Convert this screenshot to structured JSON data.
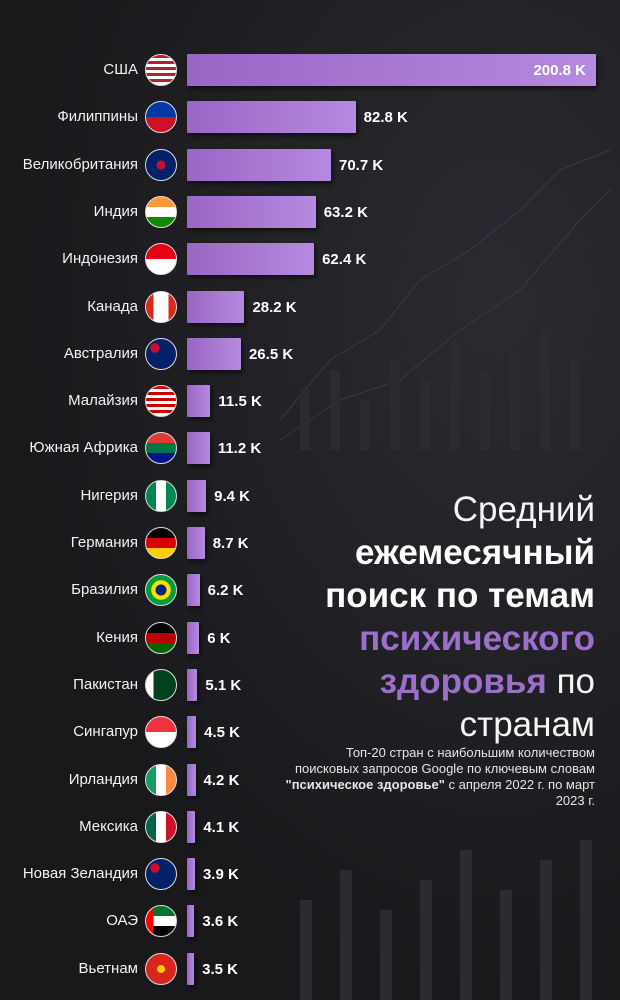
{
  "chart_data": {
    "type": "bar",
    "orientation": "horizontal",
    "title": [
      "Средний",
      "ежемесячный",
      "поиск по темам",
      "психического",
      "здоровья",
      "по",
      "странам"
    ],
    "subtitle": [
      "Топ-20 стран с наибольшим количеством поисковых запросов Google по ключевым словам",
      "\"психическое здоровье\"",
      "с апреля 2022 г. по март 2023 г."
    ],
    "categories": [
      "США",
      "Филиппины",
      "Великобритания",
      "Индия",
      "Индонезия",
      "Канада",
      "Австралия",
      "Малайзия",
      "Южная Африка",
      "Нигерия",
      "Германия",
      "Бразилия",
      "Кения",
      "Пакистан",
      "Сингапур",
      "Ирландия",
      "Мексика",
      "Новая Зеландия",
      "ОАЭ",
      "Вьетнам"
    ],
    "values": [
      200.8,
      82.8,
      70.7,
      63.2,
      62.4,
      28.2,
      26.5,
      11.5,
      11.2,
      9.4,
      8.7,
      6.2,
      6,
      5.1,
      4.5,
      4.2,
      4.1,
      3.9,
      3.6,
      3.5
    ],
    "value_labels": [
      "200.8 K",
      "82.8 K",
      "70.7 K",
      "63.2 K",
      "62.4 K",
      "28.2 K",
      "26.5 K",
      "11.5 K",
      "11.2 K",
      "9.4 K",
      "8.7 K",
      "6.2 K",
      "6 K",
      "5.1 K",
      "4.5 K",
      "4.2 K",
      "4.1 K",
      "3.9 K",
      "3.6 K",
      "3.5 K"
    ],
    "color": "#9a66c4"
  }
}
